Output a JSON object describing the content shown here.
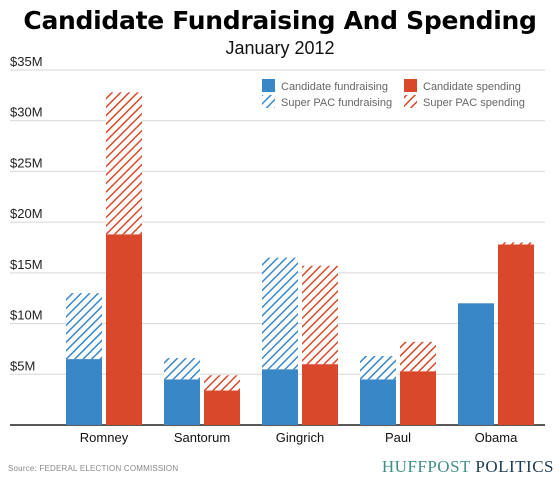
{
  "header": {
    "title": "Candidate Fundraising And Spending",
    "subtitle": "January 2012"
  },
  "footer": {
    "source": "Source: FEDERAL ELECTION COMMISSION",
    "brand_part1": "HUFFPOST",
    "brand_part2": "POLITICS"
  },
  "colors": {
    "fundraising": "#3a87c8",
    "spending": "#d9482b",
    "grid": "#d6d6d6",
    "axis": "#222222"
  },
  "chart_data": {
    "type": "bar",
    "title": "Candidate Fundraising And Spending",
    "subtitle": "January 2012",
    "categories": [
      "Romney",
      "Santorum",
      "Gingrich",
      "Paul",
      "Obama"
    ],
    "y_tick_labels": [
      "$5M",
      "$10M",
      "$15M",
      "$20M",
      "$25M",
      "$30M",
      "$35M"
    ],
    "ylim": [
      0,
      35
    ],
    "y_unit": "millions of dollars",
    "grid": true,
    "legend_position": "top-right",
    "stacked": true,
    "series": [
      {
        "name": "Candidate fundraising",
        "group": "fundraising",
        "pattern": "solid",
        "values": [
          6.5,
          4.5,
          5.5,
          4.5,
          12.0
        ]
      },
      {
        "name": "Super PAC fundraising",
        "group": "fundraising",
        "pattern": "hatched",
        "values": [
          6.5,
          2.1,
          11.0,
          2.3,
          0.0
        ]
      },
      {
        "name": "Candidate spending",
        "group": "spending",
        "pattern": "solid",
        "values": [
          18.8,
          3.4,
          6.0,
          5.3,
          17.8
        ]
      },
      {
        "name": "Super PAC spending",
        "group": "spending",
        "pattern": "hatched",
        "values": [
          14.0,
          1.5,
          9.7,
          2.9,
          0.2
        ]
      }
    ]
  }
}
